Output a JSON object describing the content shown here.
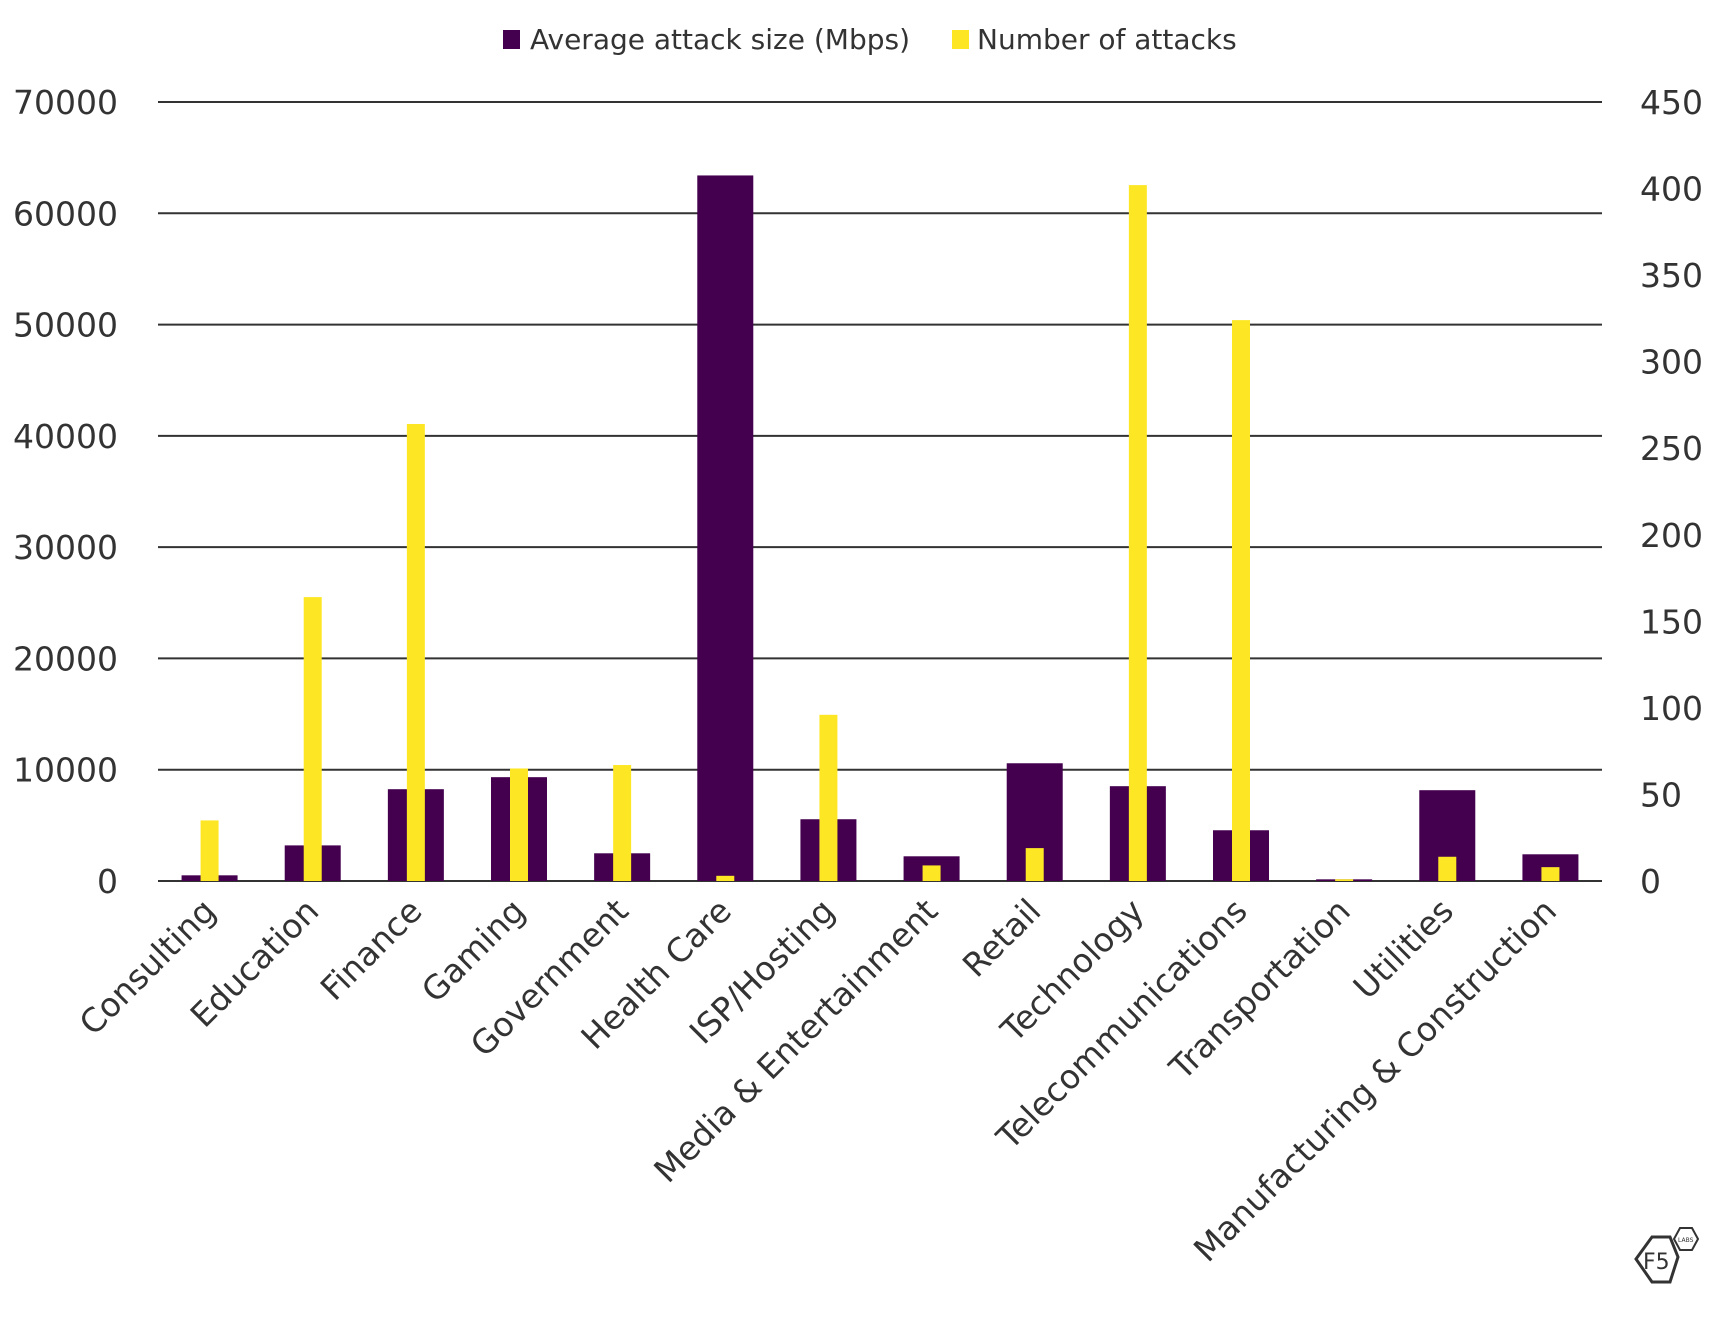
{
  "chart_data": {
    "type": "bar",
    "title": "",
    "xlabel": "",
    "ylabel": "",
    "ylabel_right": "",
    "categories": [
      "Consulting",
      "Education",
      "Finance",
      "Gaming",
      "Government",
      "Health Care",
      "ISP/Hosting",
      "Media & Entertainment",
      "Retail",
      "Technology",
      "Telecommunications",
      "Transportation",
      "Utilities",
      "Manufacturing & Construction"
    ],
    "series": [
      {
        "name": "Average attack size (Mbps)",
        "axis": "left",
        "color": "#44004f",
        "values": [
          510,
          3200,
          8250,
          9330,
          2490,
          63400,
          5550,
          2220,
          10580,
          8520,
          4560,
          150,
          8160,
          2400
        ]
      },
      {
        "name": "Number of attacks",
        "axis": "right",
        "color": "#fde725",
        "values": [
          35,
          164,
          264,
          65,
          67,
          3,
          96,
          9,
          19,
          402,
          324,
          1,
          14,
          8
        ]
      }
    ],
    "ylim": [
      0,
      70000
    ],
    "ylim_right": [
      0,
      450
    ],
    "yticks": [
      "0",
      "10000",
      "20000",
      "30000",
      "40000",
      "50000",
      "60000",
      "70000"
    ],
    "yticks_right": [
      "0",
      "50",
      "100",
      "150",
      "200",
      "250",
      "300",
      "350",
      "400",
      "450"
    ],
    "grid": true,
    "legend_position": "top-center"
  },
  "branding": {
    "logo_text": "F5",
    "logo_badge": "LABS"
  }
}
